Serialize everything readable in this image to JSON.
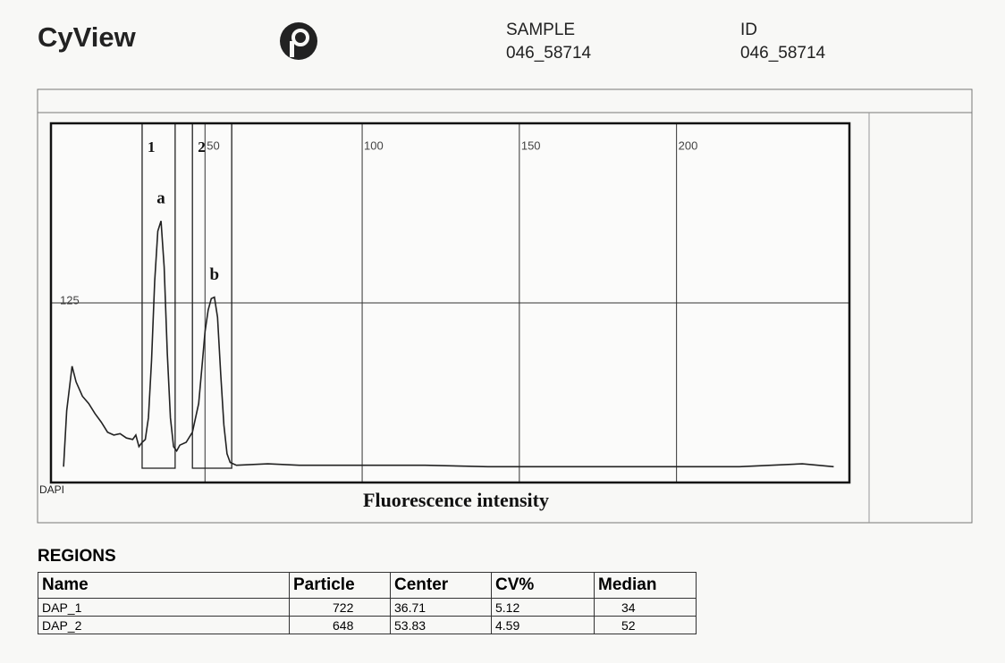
{
  "header": {
    "brand": "CyView",
    "sample_label": "SAMPLE",
    "sample_value": "046_58714",
    "id_label": "ID",
    "id_value": "046_58714"
  },
  "chart_data": {
    "type": "line",
    "color": "#222222",
    "x": [
      5,
      6,
      7.7,
      9,
      11,
      13,
      15,
      17,
      19,
      21,
      23,
      25,
      27,
      28,
      29,
      30,
      31,
      32,
      33,
      34,
      35,
      36,
      37,
      38,
      39,
      40,
      41,
      42,
      44,
      46,
      48,
      49,
      50,
      51,
      52,
      53,
      54,
      55,
      56,
      57,
      58,
      60,
      70,
      80,
      90,
      100,
      120,
      140,
      160,
      180,
      200,
      220,
      240,
      250
    ],
    "values": [
      11,
      50,
      81,
      70,
      60,
      55,
      48,
      42,
      35,
      33,
      34,
      31,
      30,
      33,
      25,
      28,
      30,
      45,
      85,
      140,
      175,
      182,
      150,
      90,
      45,
      25,
      22,
      26,
      28,
      35,
      55,
      80,
      105,
      120,
      128,
      129,
      115,
      75,
      40,
      20,
      14,
      12,
      13,
      12,
      12,
      12,
      12,
      11,
      11,
      11,
      11,
      11,
      13,
      11
    ],
    "xlim": [
      1,
      255
    ],
    "ylim": [
      0,
      250
    ],
    "xticks": [
      50,
      100,
      150,
      200
    ],
    "yticks": [
      125
    ],
    "grid": true,
    "regions": [
      {
        "label": "1",
        "x": [
          30,
          40.5
        ]
      },
      {
        "label": "2",
        "x": [
          46,
          58.5
        ]
      }
    ],
    "annotations": [
      {
        "text": "a",
        "x": 36,
        "y": 182
      },
      {
        "text": "b",
        "x": 53,
        "y": 129
      }
    ],
    "axis_name": "DAPI",
    "xlabel": "Fluorescence intensity"
  },
  "table": {
    "title": "REGIONS",
    "columns": [
      "Name",
      "Particle",
      "Center",
      "CV%",
      "Median"
    ],
    "rows": [
      [
        "DAP_1",
        722,
        36.71,
        5.12,
        34
      ],
      [
        "DAP_2",
        648,
        53.83,
        4.59,
        52
      ]
    ]
  }
}
